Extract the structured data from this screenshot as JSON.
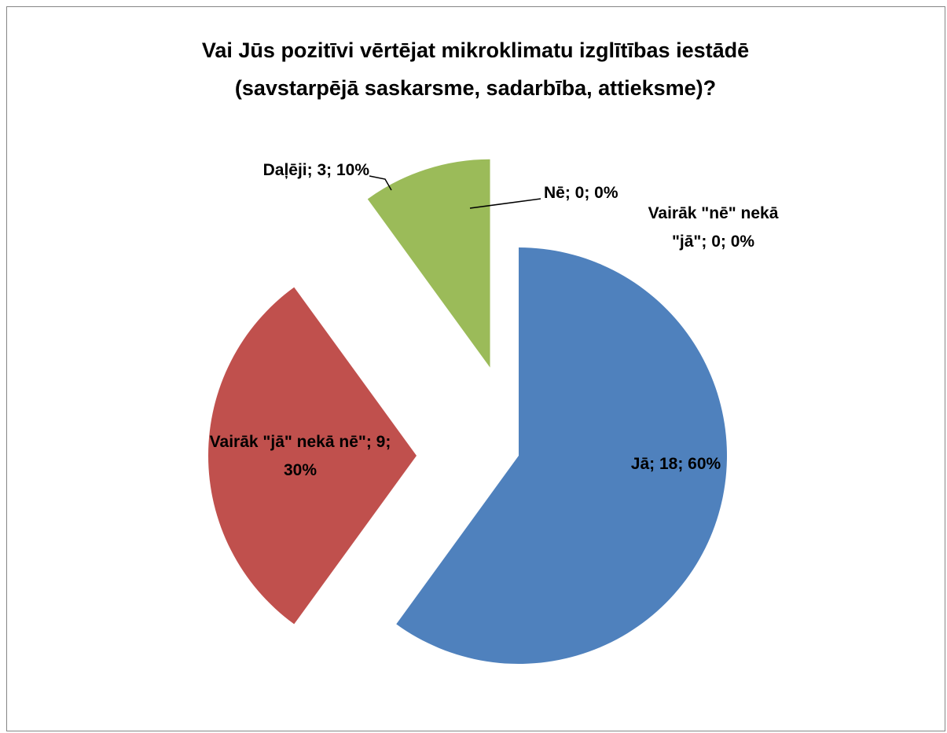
{
  "chart_data": {
    "type": "pie",
    "title": "Vai Jūs pozitīvi vērtējat mikroklimatu izglītības iestādē (savstarpējā saskarsme, sadarbība, attieksme)?",
    "values": [
      18,
      9,
      3,
      0,
      0
    ],
    "value_labels": [
      "Jā; 18; 60%",
      "Vairāk \"jā\" nekā nē\"; 9; 30%",
      "Daļēji; 3; 10%",
      "Nē; 0; 0%",
      "Vairāk \"nē\" nekā \"jā\"; 0; 0%"
    ],
    "colors": [
      "#4f81bd",
      "#c0504d",
      "#9bbb59",
      "#8064a2",
      "#4bacc6"
    ]
  }
}
